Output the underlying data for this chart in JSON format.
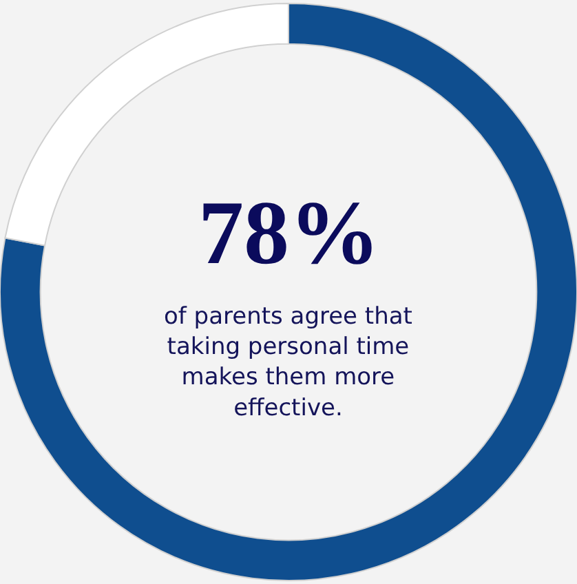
{
  "chart_data": {
    "type": "donut",
    "categories": [
      null,
      null
    ],
    "values": [
      78,
      22
    ],
    "colors": [
      "#0f4e8f",
      "#ffffff"
    ],
    "legend": false,
    "annotations": [
      "78%",
      "of parents agree that taking personal time makes them more effective."
    ]
  }
}
